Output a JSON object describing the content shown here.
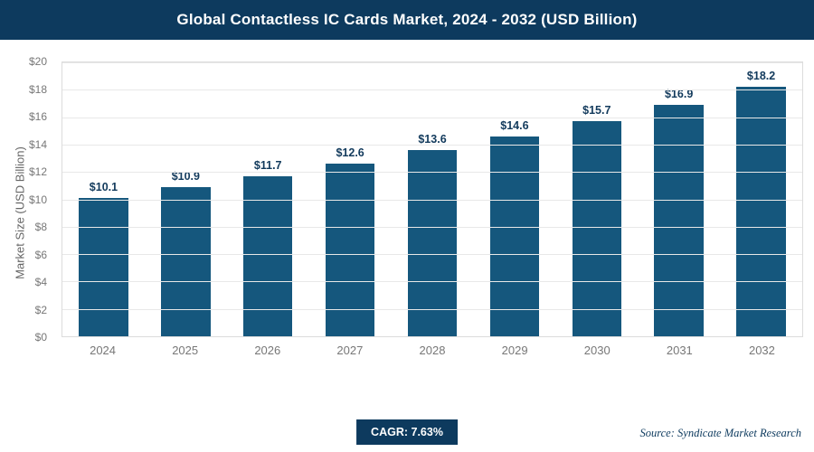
{
  "header": {
    "title": "Global Contactless IC Cards Market, 2024 - 2032 (USD Billion)"
  },
  "chart_data": {
    "type": "bar",
    "title": "Global Contactless IC Cards Market, 2024 - 2032 (USD Billion)",
    "categories": [
      "2024",
      "2025",
      "2026",
      "2027",
      "2028",
      "2029",
      "2030",
      "2031",
      "2032"
    ],
    "values": [
      10.1,
      10.9,
      11.7,
      12.6,
      13.6,
      14.6,
      15.7,
      16.9,
      18.2
    ],
    "value_labels": [
      "$10.1",
      "$10.9",
      "$11.7",
      "$12.6",
      "$13.6",
      "$14.6",
      "$15.7",
      "$16.9",
      "$18.2"
    ],
    "xlabel": "",
    "ylabel": "Market Size (USD Billion)",
    "ylim": [
      0,
      20
    ],
    "ytick_labels_bottom_to_top": [
      "$0",
      "$2",
      "$4",
      "$6",
      "$8",
      "$10",
      "$12",
      "$14",
      "$16",
      "$18",
      "$20"
    ],
    "grid": true,
    "legend": "none",
    "bar_color": "#15577d",
    "label_color": "#123a5c"
  },
  "footer": {
    "cagr_label": "CAGR: 7.63%",
    "source": "Source: Syndicate Market Research"
  },
  "colors": {
    "header_bg": "#0d3a5e",
    "badge_bg": "#0d3a5e",
    "bar": "#15577d",
    "gridline": "#e8e8e8"
  }
}
